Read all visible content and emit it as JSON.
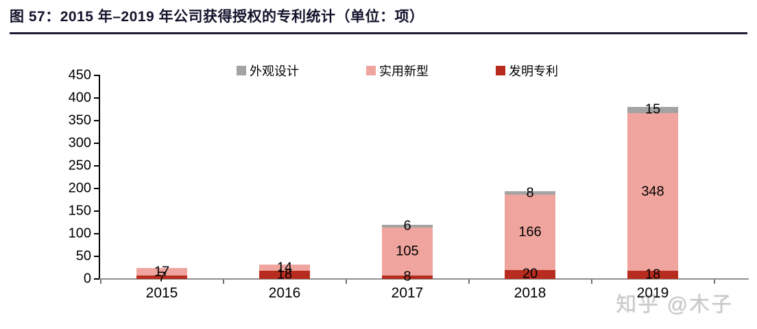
{
  "header": {
    "title": "图 57：2015 年–2019 年公司获得授权的专利统计（单位：项）"
  },
  "watermark": "知乎 @木子",
  "colors": {
    "title": "#12122B",
    "underline": "#1A1A33",
    "axis_line": "#000000",
    "baseline": "#8E8E8E",
    "design_gray": "#A3A3A3",
    "utility_pink": "#F0A49E",
    "invention_red": "#B72C1E",
    "watermark_gray": "#C9C9C9"
  },
  "chart_data": {
    "type": "bar",
    "stacked": true,
    "title": "图 57：2015 年–2019 年公司获得授权的专利统计（单位：项）",
    "xlabel": "",
    "ylabel": "",
    "unit": "项",
    "categories": [
      "2015",
      "2016",
      "2017",
      "2018",
      "2019"
    ],
    "series": [
      {
        "name": "发明专利",
        "color": "#B72C1E",
        "values": [
          7,
          18,
          8,
          20,
          18
        ]
      },
      {
        "name": "实用新型",
        "color": "#F0A49E",
        "values": [
          17,
          14,
          105,
          166,
          348
        ]
      },
      {
        "name": "外观设计",
        "color": "#A3A3A3",
        "values": [
          0,
          0,
          6,
          8,
          15
        ]
      }
    ],
    "totals": [
      24,
      32,
      119,
      194,
      381
    ],
    "legend": {
      "position": "top",
      "order": [
        "外观设计",
        "实用新型",
        "发明专利"
      ]
    },
    "ylim": [
      0,
      450
    ],
    "ytick_step": 50,
    "yticks": [
      0,
      50,
      100,
      150,
      200,
      250,
      300,
      350,
      400,
      450
    ],
    "grid": false,
    "data_labels": true
  }
}
